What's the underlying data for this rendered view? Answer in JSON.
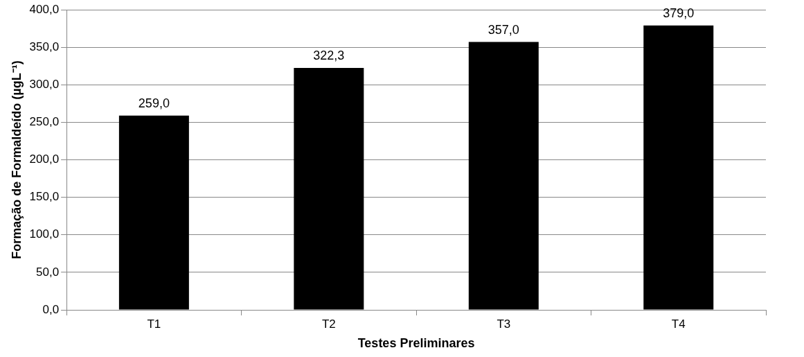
{
  "chart_data": {
    "type": "bar",
    "xlabel": "Testes Preliminares",
    "ylabel": "Formação de Formaldeído (µgL⁻¹)",
    "categories": [
      "T1",
      "T2",
      "T3",
      "T4"
    ],
    "values": [
      259.0,
      322.3,
      357.0,
      379.0
    ],
    "value_labels": [
      "259,0",
      "322,3",
      "357,0",
      "379,0"
    ],
    "color": "#000000",
    "ylim": [
      0,
      400
    ],
    "yticks": [
      {
        "value": 0,
        "label": "0,0"
      },
      {
        "value": 50,
        "label": "50,0"
      },
      {
        "value": 100,
        "label": "100,0"
      },
      {
        "value": 150,
        "label": "150,0"
      },
      {
        "value": 200,
        "label": "200,0"
      },
      {
        "value": 250,
        "label": "250,0"
      },
      {
        "value": 300,
        "label": "300,0"
      },
      {
        "value": 350,
        "label": "350,0"
      },
      {
        "value": 400,
        "label": "400,0"
      }
    ],
    "grid": "y",
    "legend": false
  }
}
